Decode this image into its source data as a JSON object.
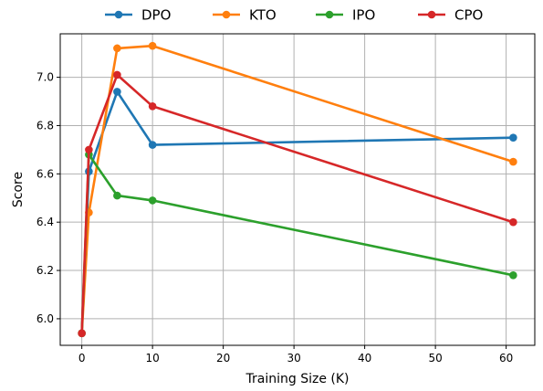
{
  "chart_data": {
    "type": "line",
    "title": "",
    "xlabel": "Training Size (K)",
    "ylabel": "Score",
    "xlim": [
      -3.05,
      64.05
    ],
    "ylim": [
      5.89,
      7.18
    ],
    "xticks": [
      0,
      10,
      20,
      30,
      40,
      50,
      60
    ],
    "yticks": [
      6.0,
      6.2,
      6.4,
      6.6,
      6.8,
      7.0
    ],
    "grid": true,
    "legend_position": "top-center",
    "series": [
      {
        "name": "DPO",
        "color": "#1f77b4",
        "points": [
          [
            0,
            5.94
          ],
          [
            1,
            6.61
          ],
          [
            5,
            6.94
          ],
          [
            10,
            6.72
          ],
          [
            61,
            6.75
          ]
        ]
      },
      {
        "name": "KTO",
        "color": "#ff7f0e",
        "points": [
          [
            0,
            5.94
          ],
          [
            1,
            6.44
          ],
          [
            5,
            7.12
          ],
          [
            10,
            7.13
          ],
          [
            61,
            6.65
          ]
        ]
      },
      {
        "name": "IPO",
        "color": "#2ca02c",
        "points": [
          [
            0,
            5.94
          ],
          [
            1,
            6.68
          ],
          [
            5,
            6.51
          ],
          [
            10,
            6.49
          ],
          [
            61,
            6.18
          ]
        ]
      },
      {
        "name": "CPO",
        "color": "#d62728",
        "points": [
          [
            0,
            5.94
          ],
          [
            1,
            6.7
          ],
          [
            5,
            7.01
          ],
          [
            10,
            6.88
          ],
          [
            61,
            6.4
          ]
        ]
      }
    ]
  }
}
